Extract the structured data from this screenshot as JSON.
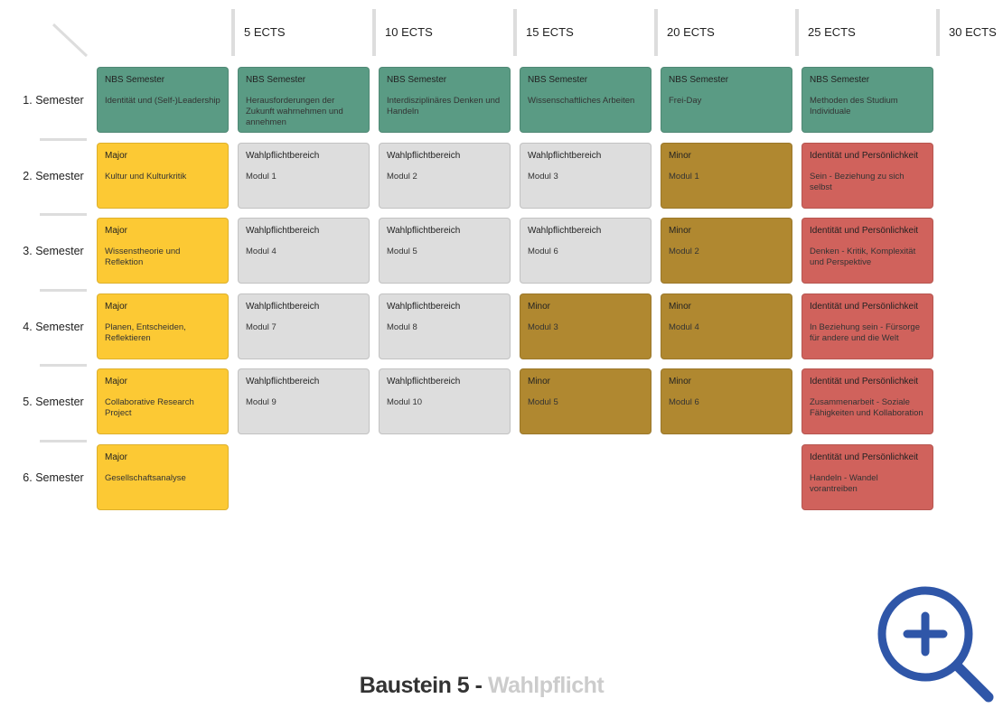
{
  "header": {
    "columns": [
      "5 ECTS",
      "10 ECTS",
      "15 ECTS",
      "20 ECTS",
      "25 ECTS",
      "30 ECTS"
    ]
  },
  "rows": [
    {
      "label": "1. Semester",
      "cells": [
        {
          "title": "NBS Semester",
          "text": "Identität und (Self-)Leadership",
          "color": "#5a9b84"
        },
        {
          "title": "NBS Semester",
          "text": "Herausforderungen der Zukunft wahrnehmen und annehmen",
          "color": "#5a9b84"
        },
        {
          "title": "NBS Semester",
          "text": "Interdisziplinäres Denken und Handeln",
          "color": "#5a9b84"
        },
        {
          "title": "NBS Semester",
          "text": "Wissenschaftliches Arbeiten",
          "color": "#5a9b84"
        },
        {
          "title": "NBS Semester",
          "text": "Frei-Day",
          "color": "#5a9b84"
        },
        {
          "title": "NBS Semester",
          "text": "Methoden des Studium Individuale",
          "color": "#5a9b84"
        }
      ]
    },
    {
      "label": "2. Semester",
      "cells": [
        {
          "title": "Major",
          "text": "Kultur und Kulturkritik",
          "color": "#fcc934"
        },
        {
          "title": "Wahlpflichtbereich",
          "text": "Modul 1",
          "color": "#dddddd"
        },
        {
          "title": "Wahlpflichtbereich",
          "text": "Modul 2",
          "color": "#dddddd"
        },
        {
          "title": "Wahlpflichtbereich",
          "text": "Modul 3",
          "color": "#dddddd"
        },
        {
          "title": "Minor",
          "text": "Modul 1",
          "color": "#b08830"
        },
        {
          "title": "Identität und Persönlichkeit",
          "text": "Sein - Beziehung zu sich selbst",
          "color": "#d0625c"
        }
      ]
    },
    {
      "label": "3. Semester",
      "cells": [
        {
          "title": "Major",
          "text": "Wissenstheorie und Reflektion",
          "color": "#fcc934"
        },
        {
          "title": "Wahlpflichtbereich",
          "text": "Modul 4",
          "color": "#dddddd"
        },
        {
          "title": "Wahlpflichtbereich",
          "text": "Modul 5",
          "color": "#dddddd"
        },
        {
          "title": "Wahlpflichtbereich",
          "text": "Modul 6",
          "color": "#dddddd"
        },
        {
          "title": "Minor",
          "text": "Modul 2",
          "color": "#b08830"
        },
        {
          "title": "Identität und Persönlichkeit",
          "text": "Denken - Kritik, Komplexität und Perspektive",
          "color": "#d0625c"
        }
      ]
    },
    {
      "label": "4. Semester",
      "cells": [
        {
          "title": "Major",
          "text": "Planen, Entscheiden, Reflektieren",
          "color": "#fcc934"
        },
        {
          "title": "Wahlpflichtbereich",
          "text": "Modul 7",
          "color": "#dddddd"
        },
        {
          "title": "Wahlpflichtbereich",
          "text": "Modul 8",
          "color": "#dddddd"
        },
        {
          "title": "Minor",
          "text": "Modul 3",
          "color": "#b08830"
        },
        {
          "title": "Minor",
          "text": "Modul 4",
          "color": "#b08830"
        },
        {
          "title": "Identität und Persönlichkeit",
          "text": "In Beziehung sein - Fürsorge für andere und die Welt",
          "color": "#d0625c"
        }
      ]
    },
    {
      "label": "5. Semester",
      "cells": [
        {
          "title": "Major",
          "text": "Collaborative Research Project",
          "color": "#fcc934"
        },
        {
          "title": "Wahlpflichtbereich",
          "text": "Modul 9",
          "color": "#dddddd"
        },
        {
          "title": "Wahlpflichtbereich",
          "text": "Modul 10",
          "color": "#dddddd"
        },
        {
          "title": "Minor",
          "text": "Modul 5",
          "color": "#b08830"
        },
        {
          "title": "Minor",
          "text": "Modul 6",
          "color": "#b08830"
        },
        {
          "title": "Identität und Persönlichkeit",
          "text": "Zusammenarbeit - Soziale Fähigkeiten und Kollaboration",
          "color": "#d0625c"
        }
      ]
    },
    {
      "label": "6. Semester",
      "cells": [
        {
          "title": "Major",
          "text": "Gesellschaftsanalyse",
          "color": "#fcc934"
        },
        null,
        null,
        null,
        null,
        {
          "title": "Identität und Persönlichkeit",
          "text": "Handeln - Wandel vorantreiben",
          "color": "#d0625c"
        }
      ]
    }
  ],
  "footer": {
    "title": "Baustein 5 -",
    "subtitle": "Wahlpflicht"
  }
}
